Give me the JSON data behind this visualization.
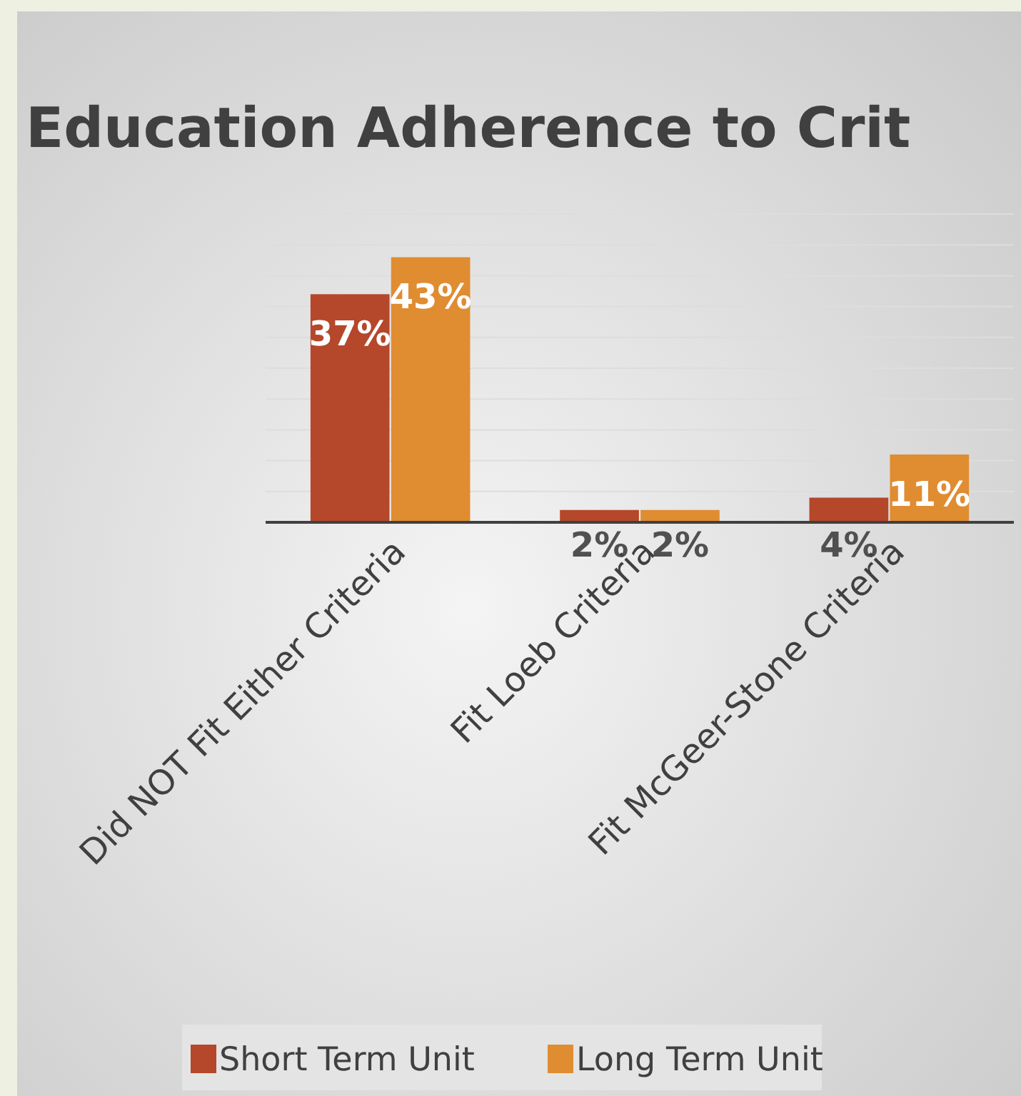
{
  "chart_data": {
    "type": "bar",
    "title": "Education Adherence to Crit",
    "categories": [
      "Did NOT Fit Either Criteria",
      "Fit Loeb Criteria",
      "Fit McGeer-Stone Criteria"
    ],
    "series": [
      {
        "name": "Short Term Unit",
        "color": "#b5472b",
        "values": [
          37,
          2,
          4
        ],
        "value_labels": [
          "37%",
          "2%",
          "4%"
        ]
      },
      {
        "name": "Long Term Unit",
        "color": "#e08c31",
        "values": [
          43,
          2,
          11
        ],
        "value_labels": [
          "43%",
          "2%",
          "11%"
        ]
      }
    ],
    "ylim": [
      0,
      50
    ],
    "yticks": [
      {
        "value": 0,
        "label": null
      },
      {
        "value": 5,
        "label": null
      },
      {
        "value": 10,
        "label": null
      },
      {
        "value": 15,
        "label": null
      },
      {
        "value": 20,
        "label": null
      },
      {
        "value": 25,
        "label": null
      },
      {
        "value": 30,
        "label": null
      },
      {
        "value": 35,
        "label": null
      },
      {
        "value": 40,
        "label": null
      },
      {
        "value": 45,
        "label": null
      },
      {
        "value": 50,
        "label": null
      }
    ],
    "grid": "y",
    "legend": "bottom",
    "tick_labels": "x"
  }
}
